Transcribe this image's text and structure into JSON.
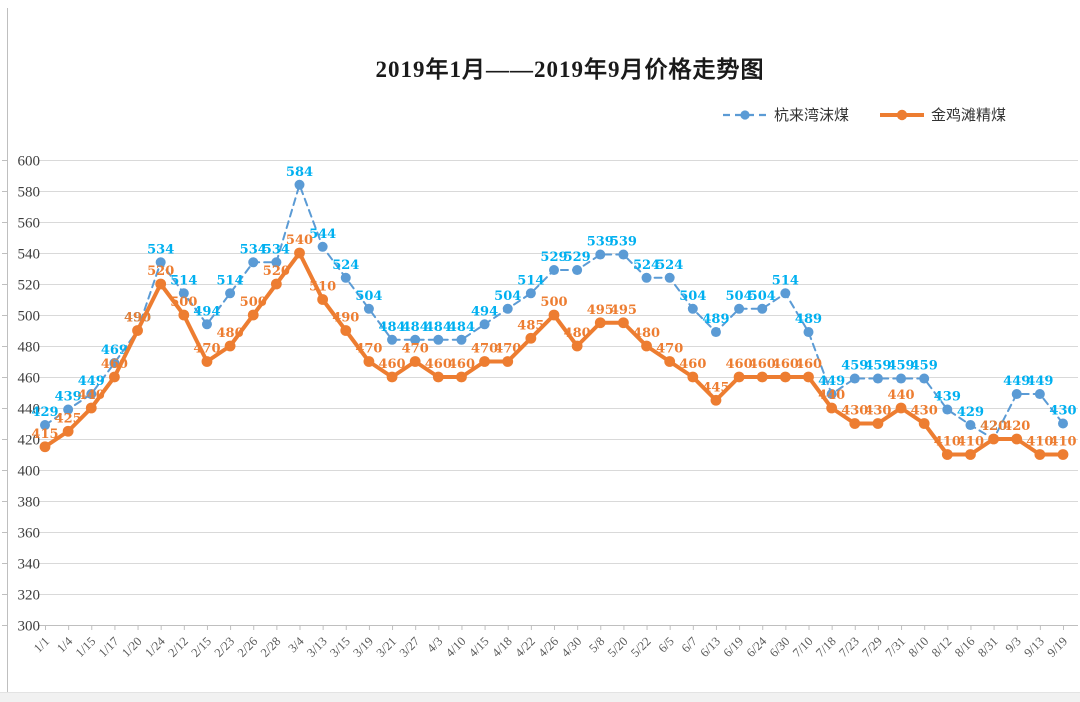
{
  "chart_data": {
    "type": "line",
    "title": "2019年1月——2019年9月价格走势图",
    "categories": [
      "1/1",
      "1/4",
      "1/15",
      "1/17",
      "1/20",
      "1/24",
      "2/12",
      "2/15",
      "2/23",
      "2/26",
      "2/28",
      "3/4",
      "3/13",
      "3/15",
      "3/19",
      "3/21",
      "3/27",
      "4/3",
      "4/10",
      "4/15",
      "4/18",
      "4/22",
      "4/26",
      "4/30",
      "5/8",
      "5/20",
      "5/22",
      "6/5",
      "6/7",
      "6/13",
      "6/19",
      "6/24",
      "6/30",
      "7/10",
      "7/18",
      "7/23",
      "7/29",
      "7/31",
      "8/10",
      "8/12",
      "8/16",
      "8/31",
      "9/3",
      "9/13",
      "9/19"
    ],
    "series": [
      {
        "name": "杭来湾沫煤",
        "values": [
          429,
          439,
          449,
          469,
          490,
          534,
          514,
          494,
          514,
          534,
          534,
          584,
          544,
          524,
          504,
          484,
          484,
          484,
          484,
          494,
          504,
          514,
          529,
          529,
          539,
          539,
          524,
          524,
          504,
          489,
          504,
          504,
          514,
          489,
          449,
          459,
          459,
          459,
          459,
          439,
          429,
          420,
          449,
          449,
          430
        ],
        "line_style": "dashed",
        "color": "#5B9BD5",
        "label_color": "#00B0F0"
      },
      {
        "name": "金鸡滩精煤",
        "values": [
          415,
          425,
          440,
          460,
          490,
          520,
          500,
          470,
          480,
          500,
          520,
          540,
          510,
          490,
          470,
          460,
          470,
          460,
          460,
          470,
          470,
          485,
          500,
          480,
          495,
          495,
          480,
          470,
          460,
          445,
          460,
          460,
          460,
          460,
          440,
          430,
          430,
          440,
          430,
          410,
          410,
          420,
          420,
          410,
          410
        ],
        "line_style": "solid",
        "color": "#ED7D31",
        "label_color": "#ED7D31"
      }
    ],
    "ylabel": "",
    "xlabel": "",
    "ylim": [
      300,
      600
    ],
    "ytick_step": 20,
    "grid": true,
    "legend_position": "top-right",
    "data_labels": true,
    "grid_color": "#D9D9D9",
    "axis_color": "#BFBFBF"
  }
}
